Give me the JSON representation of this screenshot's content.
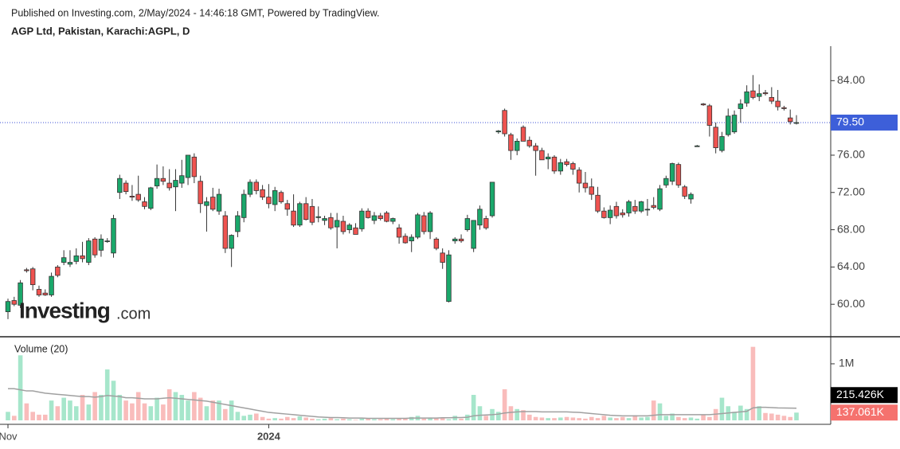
{
  "chart_data": {
    "type": "candlestick",
    "published": "Published on Investing.com, 2/May/2024 - 14:46:18 GMT, Powered by TradingView.",
    "title": "AGP Ltd, Pakistan, Karachi:AGPL, D",
    "logo": {
      "brand": "Investing",
      "suffix": ".com"
    },
    "colors": {
      "up": "#1aa86b",
      "down": "#ef5350",
      "up_volume": "#a6e6cb",
      "down_volume": "#f9bcbb",
      "ma": "#a0a0a0",
      "price_line": "#3b4fd6",
      "price_tag": "#3d5fd9",
      "ma_tag": "#000000",
      "volume_tag": "#f5726e"
    },
    "ohlc": [
      [
        59.2,
        60.6,
        58.4,
        60.3
      ],
      [
        60.4,
        60.8,
        59.8,
        60.0
      ],
      [
        59.9,
        62.6,
        59.6,
        62.3
      ],
      [
        63.7,
        63.9,
        63.4,
        63.6
      ],
      [
        63.8,
        64.0,
        61.5,
        62.1
      ],
      [
        61.6,
        62.0,
        60.8,
        61.0
      ],
      [
        61.2,
        61.6,
        60.9,
        61.0
      ],
      [
        61.0,
        63.4,
        60.8,
        63.0
      ],
      [
        64.0,
        64.2,
        62.9,
        63.1
      ],
      [
        64.5,
        65.8,
        64.2,
        65.0
      ],
      [
        64.3,
        65.8,
        64.0,
        64.5
      ],
      [
        64.6,
        66.0,
        64.3,
        65.2
      ],
      [
        65.2,
        66.7,
        64.5,
        64.9
      ],
      [
        64.5,
        67.1,
        64.2,
        66.8
      ],
      [
        67.0,
        67.2,
        65.0,
        65.3
      ],
      [
        65.8,
        67.5,
        65.1,
        67.0
      ],
      [
        66.8,
        67.1,
        66.6,
        66.8
      ],
      [
        65.5,
        69.6,
        65.0,
        69.2
      ],
      [
        72.0,
        73.9,
        71.3,
        73.5
      ],
      [
        73.0,
        73.3,
        71.8,
        72.1
      ],
      [
        71.6,
        72.8,
        71.1,
        71.5
      ],
      [
        71.8,
        73.8,
        71.0,
        71.2
      ],
      [
        71.0,
        71.5,
        70.2,
        70.5
      ],
      [
        70.3,
        72.6,
        70.1,
        72.5
      ],
      [
        72.7,
        75.0,
        72.4,
        73.5
      ],
      [
        73.5,
        74.8,
        72.8,
        73.2
      ],
      [
        73.0,
        74.5,
        72.2,
        72.5
      ],
      [
        72.6,
        74.5,
        70.0,
        73.3
      ],
      [
        73.0,
        75.5,
        72.5,
        73.8
      ],
      [
        73.6,
        76.0,
        72.8,
        76.0
      ],
      [
        75.8,
        76.2,
        73.0,
        73.7
      ],
      [
        73.2,
        73.8,
        69.8,
        70.8
      ],
      [
        70.6,
        71.5,
        67.8,
        71.0
      ],
      [
        71.5,
        72.5,
        70.0,
        70.2
      ],
      [
        70.0,
        72.4,
        69.6,
        71.8
      ],
      [
        69.5,
        70.0,
        65.5,
        66.0
      ],
      [
        66.0,
        67.5,
        64.0,
        67.4
      ],
      [
        67.8,
        70.0,
        67.2,
        69.5
      ],
      [
        69.3,
        72.3,
        68.8,
        71.8
      ],
      [
        71.8,
        73.4,
        71.5,
        73.1
      ],
      [
        73.1,
        73.4,
        71.8,
        72.2
      ],
      [
        72.3,
        72.8,
        71.2,
        71.5
      ],
      [
        71.5,
        72.9,
        70.3,
        70.8
      ],
      [
        70.7,
        72.6,
        70.0,
        72.2
      ],
      [
        72.0,
        72.2,
        70.8,
        71.0
      ],
      [
        70.8,
        71.2,
        69.5,
        70.2
      ],
      [
        70.0,
        71.8,
        68.3,
        68.5
      ],
      [
        68.5,
        71.0,
        68.3,
        70.8
      ],
      [
        70.8,
        71.5,
        69.0,
        69.1
      ],
      [
        70.5,
        71.3,
        68.5,
        68.8
      ],
      [
        69.3,
        70.5,
        68.8,
        69.4
      ],
      [
        69.0,
        69.5,
        68.5,
        69.2
      ],
      [
        69.3,
        69.8,
        68.0,
        68.2
      ],
      [
        68.3,
        69.8,
        66.0,
        69.0
      ],
      [
        68.9,
        69.5,
        67.5,
        67.8
      ],
      [
        68.0,
        68.7,
        67.6,
        68.5
      ],
      [
        68.2,
        68.7,
        67.5,
        67.5
      ],
      [
        68.1,
        70.3,
        67.8,
        70.0
      ],
      [
        70.0,
        70.3,
        69.2,
        69.3
      ],
      [
        69.0,
        69.9,
        68.6,
        69.5
      ],
      [
        69.5,
        69.8,
        69.0,
        69.2
      ],
      [
        69.8,
        70.0,
        68.8,
        68.9
      ],
      [
        68.9,
        69.3,
        68.6,
        69.2
      ],
      [
        68.2,
        68.6,
        66.5,
        67.2
      ],
      [
        67.3,
        67.6,
        66.5,
        66.6
      ],
      [
        66.8,
        67.5,
        65.6,
        67.2
      ],
      [
        67.2,
        69.8,
        67.0,
        69.6
      ],
      [
        69.5,
        69.9,
        67.5,
        67.8
      ],
      [
        67.8,
        70.0,
        67.0,
        69.8
      ],
      [
        67.0,
        67.2,
        65.8,
        66.0
      ],
      [
        65.5,
        66.0,
        63.8,
        64.5
      ],
      [
        60.3,
        65.8,
        60.2,
        65.3
      ],
      [
        66.8,
        67.2,
        66.5,
        67.0
      ],
      [
        67.0,
        67.5,
        66.6,
        66.8
      ],
      [
        68.0,
        69.6,
        67.8,
        69.2
      ],
      [
        66.0,
        69.0,
        65.6,
        69.0
      ],
      [
        68.5,
        70.6,
        68.0,
        70.2
      ],
      [
        69.2,
        69.5,
        68.0,
        68.2
      ],
      [
        69.5,
        73.1,
        69.3,
        73.1
      ],
      [
        78.5,
        78.7,
        78.3,
        78.6
      ],
      [
        80.8,
        81.0,
        78.0,
        78.3
      ],
      [
        78.2,
        78.4,
        75.5,
        76.5
      ],
      [
        76.5,
        77.8,
        76.0,
        77.5
      ],
      [
        79.0,
        79.2,
        77.5,
        77.5
      ],
      [
        77.6,
        78.0,
        76.8,
        77.0
      ],
      [
        77.0,
        77.3,
        73.8,
        76.5
      ],
      [
        76.5,
        76.8,
        75.5,
        75.5
      ],
      [
        75.6,
        76.2,
        74.5,
        75.8
      ],
      [
        75.8,
        76.0,
        74.0,
        74.3
      ],
      [
        74.3,
        75.6,
        73.9,
        75.2
      ],
      [
        75.3,
        75.6,
        74.8,
        75.0
      ],
      [
        75.1,
        75.3,
        73.9,
        74.5
      ],
      [
        74.4,
        74.7,
        72.0,
        73.0
      ],
      [
        73.0,
        74.2,
        72.0,
        72.5
      ],
      [
        72.6,
        73.5,
        71.2,
        71.8
      ],
      [
        71.7,
        72.6,
        69.8,
        70.0
      ],
      [
        70.0,
        70.4,
        69.2,
        69.3
      ],
      [
        69.3,
        70.6,
        68.6,
        70.1
      ],
      [
        70.5,
        71.0,
        69.2,
        69.5
      ],
      [
        69.8,
        70.2,
        69.3,
        69.6
      ],
      [
        69.8,
        71.2,
        69.4,
        71.0
      ],
      [
        70.5,
        71.2,
        69.7,
        70.0
      ],
      [
        70.0,
        71.1,
        69.8,
        71.0
      ],
      [
        70.2,
        71.3,
        69.5,
        70.2
      ],
      [
        70.6,
        71.5,
        70.2,
        70.4
      ],
      [
        70.2,
        72.8,
        70.0,
        72.4
      ],
      [
        72.8,
        73.8,
        72.5,
        73.5
      ],
      [
        73.2,
        75.2,
        72.8,
        75.1
      ],
      [
        75.0,
        75.2,
        72.5,
        72.8
      ],
      [
        72.6,
        72.8,
        71.3,
        71.6
      ],
      [
        71.3,
        72.0,
        70.8,
        71.8
      ],
      [
        77.0,
        77.1,
        76.9,
        77.0
      ],
      [
        81.5,
        81.6,
        81.3,
        81.4
      ],
      [
        81.3,
        81.5,
        78.0,
        79.2
      ],
      [
        79.0,
        79.5,
        76.2,
        76.8
      ],
      [
        76.5,
        78.5,
        76.3,
        78.0
      ],
      [
        78.2,
        81.0,
        78.0,
        80.2
      ],
      [
        78.5,
        80.8,
        78.3,
        80.3
      ],
      [
        81.0,
        82.0,
        79.5,
        81.5
      ],
      [
        81.6,
        83.5,
        81.2,
        82.8
      ],
      [
        82.9,
        84.6,
        82.0,
        82.2
      ],
      [
        82.3,
        83.6,
        81.8,
        82.6
      ],
      [
        82.7,
        83.0,
        82.4,
        82.6
      ],
      [
        82.2,
        83.3,
        81.5,
        81.8
      ],
      [
        81.8,
        83.0,
        80.8,
        81.2
      ],
      [
        81.1,
        81.3,
        80.8,
        81.0
      ],
      [
        80.0,
        80.9,
        79.3,
        79.6
      ],
      [
        79.5,
        80.3,
        79.3,
        79.5
      ]
    ],
    "volume": {
      "name": "Volume (20)",
      "values": [
        150000,
        80000,
        1150000,
        300000,
        150000,
        100000,
        100000,
        350000,
        250000,
        400000,
        350000,
        250000,
        450000,
        280000,
        500000,
        450000,
        900000,
        700000,
        450000,
        350000,
        300000,
        500000,
        300000,
        250000,
        400000,
        280000,
        550000,
        500000,
        450000,
        350000,
        500000,
        400000,
        250000,
        350000,
        350000,
        200000,
        350000,
        150000,
        80000,
        100000,
        120000,
        60000,
        30000,
        40000,
        30000,
        60000,
        40000,
        70000,
        50000,
        30000,
        20000,
        30000,
        40000,
        20000,
        30000,
        20000,
        10000,
        30000,
        30000,
        20000,
        20000,
        30000,
        20000,
        40000,
        30000,
        60000,
        80000,
        30000,
        50000,
        40000,
        50000,
        20000,
        80000,
        30000,
        100000,
        450000,
        250000,
        80000,
        200000,
        150000,
        550000,
        250000,
        200000,
        180000,
        100000,
        60000,
        50000,
        40000,
        40000,
        50000,
        60000,
        50000,
        40000,
        30000,
        60000,
        40000,
        80000,
        50000,
        40000,
        60000,
        40000,
        90000,
        50000,
        60000,
        350000,
        300000,
        80000,
        120000,
        60000,
        40000,
        50000,
        30000,
        100000,
        60000,
        200000,
        400000,
        250000,
        150000,
        260000,
        200000,
        1300000,
        250000,
        130000,
        120000,
        100000,
        80000,
        60000,
        137061
      ],
      "ma": [
        560000,
        560000,
        540000,
        520000,
        520000,
        500000,
        480000,
        470000,
        460000,
        450000,
        440000,
        430000,
        420000,
        420000,
        410000,
        420000,
        440000,
        430000,
        420000,
        400000,
        400000,
        390000,
        380000,
        380000,
        380000,
        390000,
        400000,
        390000,
        380000,
        370000,
        360000,
        350000,
        340000,
        320000,
        300000,
        280000,
        260000,
        240000,
        220000,
        200000,
        180000,
        160000,
        140000,
        130000,
        120000,
        110000,
        100000,
        90000,
        80000,
        70000,
        60000,
        55000,
        50000,
        50000,
        45000,
        40000,
        40000,
        40000,
        35000,
        35000,
        35000,
        35000,
        35000,
        35000,
        35000,
        40000,
        40000,
        40000,
        40000,
        40000,
        45000,
        45000,
        50000,
        50000,
        55000,
        80000,
        90000,
        95000,
        100000,
        110000,
        130000,
        140000,
        150000,
        155000,
        155000,
        155000,
        150000,
        150000,
        150000,
        150000,
        150000,
        145000,
        140000,
        130000,
        120000,
        110000,
        100000,
        90000,
        85000,
        80000,
        80000,
        80000,
        80000,
        80000,
        90000,
        100000,
        100000,
        100000,
        100000,
        100000,
        100000,
        100000,
        100000,
        100000,
        110000,
        120000,
        130000,
        140000,
        150000,
        160000,
        220000,
        230000,
        230000,
        225000,
        220000,
        218000,
        216000,
        215426
      ]
    },
    "last_price": {
      "value": 79.5,
      "label": "79.50"
    },
    "ma_last": {
      "value": 215426,
      "label": "215.426K"
    },
    "volume_last": {
      "value": 137061,
      "label": "137.061K"
    },
    "ylim": [
      56.6,
      87.7
    ],
    "yticks": [
      {
        "value": 60,
        "label": "60.00"
      },
      {
        "value": 64,
        "label": "64.00"
      },
      {
        "value": 68,
        "label": "68.00"
      },
      {
        "value": 72,
        "label": "72.00"
      },
      {
        "value": 76,
        "label": "76.00"
      },
      {
        "value": 84,
        "label": "84.00"
      }
    ],
    "y2lim": [
      0,
      1450000
    ],
    "y2ticks": [
      {
        "value": 1000000,
        "label": "1M"
      }
    ],
    "xlim": [
      0,
      127
    ],
    "xticks": [
      {
        "value": 0,
        "label": "Nov"
      },
      {
        "value": 42,
        "label": "2024"
      }
    ]
  }
}
